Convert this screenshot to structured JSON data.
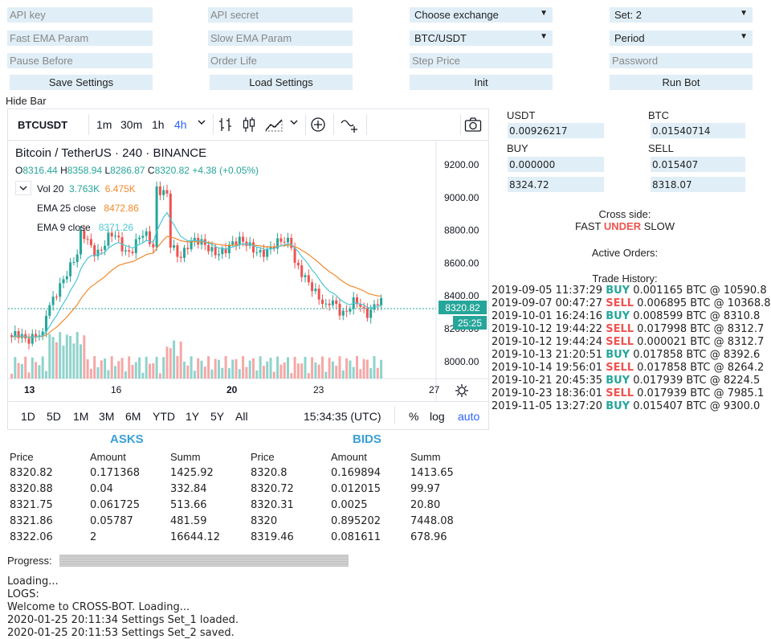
{
  "settings": {
    "api_key_placeholder": "API key",
    "api_secret_placeholder": "API secret",
    "exchange_select": "Choose exchange",
    "set_select": "Set: 2",
    "fast_ema_placeholder": "Fast EMA Param",
    "slow_ema_placeholder": "Slow EMA Param",
    "pair_select": "BTC/USDT",
    "period_select": "Period",
    "pause_before_placeholder": "Pause Before",
    "order_life_placeholder": "Order Life",
    "step_price_placeholder": "Step Price",
    "password_placeholder": "Password",
    "save_button": "Save Settings",
    "load_button": "Load Settings",
    "init_button": "Init",
    "run_button": "Run Bot",
    "hide_bar": "Hide Bar"
  },
  "chart": {
    "symbol": "BTCUSDT",
    "intervals": [
      "1m",
      "30m",
      "1h",
      "4h"
    ],
    "active_interval": "4h",
    "title": "Bitcoin / TetherUS · 240 · BINANCE",
    "ohlc": {
      "o_label": "O",
      "o": "8316.44",
      "h_label": "H",
      "h": "8358.94",
      "l_label": "L",
      "l": "8286.87",
      "c_label": "C",
      "c": "8320.82",
      "change": "+4.38 (+0.05%)"
    },
    "vol_label": "Vol 20",
    "vol_value1": "3.763K",
    "vol_value2": "6.475K",
    "ema25_label": "EMA 25 close",
    "ema25_value": "8472.86",
    "ema9_label": "EMA 9 close",
    "ema9_value": "8371.26",
    "price_axis": [
      "9200.00",
      "9000.00",
      "8800.00",
      "8600.00",
      "8400.00",
      "8200.00",
      "8000.00"
    ],
    "last_price": "8320.82",
    "countdown": "25:25",
    "time_axis": [
      "13",
      "16",
      "20",
      "23",
      "27"
    ],
    "ranges": [
      "1D",
      "5D",
      "1M",
      "3M",
      "6M",
      "YTD",
      "1Y",
      "5Y",
      "All"
    ],
    "clock": "15:34:35 (UTC)",
    "percent_label": "%",
    "log_label": "log",
    "auto_label": "auto",
    "colors": {
      "up": "#26a69a",
      "down": "#ef5350",
      "ema9": "#4dc7d6",
      "ema25": "#f08a2c",
      "accent": "#2962ff"
    }
  },
  "balances": {
    "usdt_label": "USDT",
    "btc_label": "BTC",
    "usdt_value": "0.00926217",
    "btc_value": "0.01540714",
    "buy_label": "BUY",
    "sell_label": "SELL",
    "buy_value": "0.000000",
    "sell_value": "0.015407",
    "buy_price": "8324.72",
    "sell_price": "8318.07"
  },
  "cross": {
    "label": "Cross side:",
    "fast": "FAST",
    "under": "UNDER",
    "slow": "SLOW",
    "active_orders": "Active Orders:",
    "trade_history": "Trade History:"
  },
  "trades": [
    {
      "time": "2019-09-05 11:37:29",
      "side": "BUY",
      "rest": "0.001165 BTC @ 10590.8"
    },
    {
      "time": "2019-09-07 00:47:27",
      "side": "SELL",
      "rest": "0.006895 BTC @ 10368.8"
    },
    {
      "time": "2019-10-01 16:24:16",
      "side": "BUY",
      "rest": "0.008599 BTC @ 8310.8"
    },
    {
      "time": "2019-10-12 19:44:22",
      "side": "SELL",
      "rest": "0.017998 BTC @ 8312.7"
    },
    {
      "time": "2019-10-12 19:44:24",
      "side": "SELL",
      "rest": "0.000021 BTC @ 8312.7"
    },
    {
      "time": "2019-10-13 21:20:51",
      "side": "BUY",
      "rest": "0.017858 BTC @ 8392.6"
    },
    {
      "time": "2019-10-14 19:56:01",
      "side": "SELL",
      "rest": "0.017858 BTC @ 8264.2"
    },
    {
      "time": "2019-10-21 20:45:35",
      "side": "BUY",
      "rest": "0.017939 BTC @ 8224.5"
    },
    {
      "time": "2019-10-23 18:36:01",
      "side": "SELL",
      "rest": "0.017939 BTC @ 7985.1"
    },
    {
      "time": "2019-11-05 13:27:20",
      "side": "BUY",
      "rest": "0.015407 BTC @ 9300.0"
    }
  ],
  "orderbook": {
    "asks_title": "ASKS",
    "bids_title": "BIDS",
    "headers": [
      "Price",
      "Amount",
      "Summ"
    ],
    "asks": [
      [
        "8320.82",
        "0.171368",
        "1425.92"
      ],
      [
        "8320.88",
        "0.04",
        "332.84"
      ],
      [
        "8321.75",
        "0.061725",
        "513.66"
      ],
      [
        "8321.86",
        "0.05787",
        "481.59"
      ],
      [
        "8322.06",
        "2",
        "16644.12"
      ]
    ],
    "bids": [
      [
        "8320.8",
        "0.169894",
        "1413.65"
      ],
      [
        "8320.72",
        "0.012015",
        "99.97"
      ],
      [
        "8320.31",
        "0.0025",
        "20.80"
      ],
      [
        "8320",
        "0.895202",
        "7448.08"
      ],
      [
        "8319.46",
        "0.081611",
        "678.96"
      ]
    ]
  },
  "footer": {
    "progress_label": "Progress:",
    "progress": 1.0,
    "loading": "Loading...",
    "logs_label": "LOGS:",
    "logs": [
      "Welcome to CROSS-BOT. Loading...",
      "2020-01-25 20:11:34 Settings Set_1 loaded.",
      "2020-01-25 20:11:53 Settings Set_2 saved."
    ]
  }
}
